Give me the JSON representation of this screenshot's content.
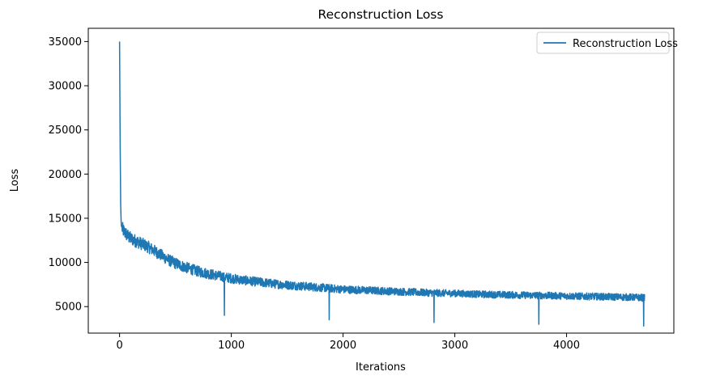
{
  "chart_data": {
    "type": "line",
    "title": "Reconstruction Loss",
    "xlabel": "Iterations",
    "ylabel": "Loss",
    "xlim": [
      -280,
      4960
    ],
    "ylim": [
      2000,
      36500
    ],
    "xticks": [
      0,
      1000,
      2000,
      3000,
      4000
    ],
    "yticks": [
      5000,
      10000,
      15000,
      20000,
      25000,
      30000,
      35000
    ],
    "grid": false,
    "legend": {
      "position": "top-right",
      "entries": [
        "Reconstruction Loss"
      ]
    },
    "series": [
      {
        "name": "Reconstruction Loss",
        "color": "#1f77b4",
        "iterations": 4700,
        "points": [
          [
            0,
            35000
          ],
          [
            5,
            24000
          ],
          [
            10,
            16500
          ],
          [
            15,
            14200
          ],
          [
            25,
            13800
          ],
          [
            40,
            13500
          ],
          [
            60,
            13200
          ],
          [
            80,
            12900
          ],
          [
            100,
            12700
          ],
          [
            150,
            12400
          ],
          [
            200,
            12100
          ],
          [
            250,
            11800
          ],
          [
            300,
            11400
          ],
          [
            350,
            11000
          ],
          [
            400,
            10600
          ],
          [
            450,
            10200
          ],
          [
            500,
            9900
          ],
          [
            600,
            9400
          ],
          [
            700,
            9000
          ],
          [
            800,
            8700
          ],
          [
            900,
            8450
          ],
          [
            1000,
            8200
          ],
          [
            1100,
            8000
          ],
          [
            1200,
            7850
          ],
          [
            1300,
            7700
          ],
          [
            1400,
            7550
          ],
          [
            1500,
            7450
          ],
          [
            1600,
            7350
          ],
          [
            1700,
            7250
          ],
          [
            1800,
            7150
          ],
          [
            1900,
            7050
          ],
          [
            2000,
            6950
          ],
          [
            2200,
            6850
          ],
          [
            2400,
            6750
          ],
          [
            2600,
            6650
          ],
          [
            2800,
            6550
          ],
          [
            3000,
            6500
          ],
          [
            3200,
            6400
          ],
          [
            3400,
            6350
          ],
          [
            3600,
            6300
          ],
          [
            3800,
            6250
          ],
          [
            4000,
            6200
          ],
          [
            4200,
            6150
          ],
          [
            4400,
            6100
          ],
          [
            4600,
            6050
          ],
          [
            4700,
            6000
          ]
        ],
        "noise_band": [
          [
            0,
            800
          ],
          [
            200,
            700
          ],
          [
            500,
            650
          ],
          [
            1000,
            550
          ],
          [
            2000,
            450
          ],
          [
            3000,
            400
          ],
          [
            4700,
            400
          ]
        ],
        "dips": [
          [
            938,
            4000
          ],
          [
            1876,
            3500
          ],
          [
            2814,
            3200
          ],
          [
            3752,
            3000
          ],
          [
            4690,
            2800
          ]
        ]
      }
    ]
  }
}
